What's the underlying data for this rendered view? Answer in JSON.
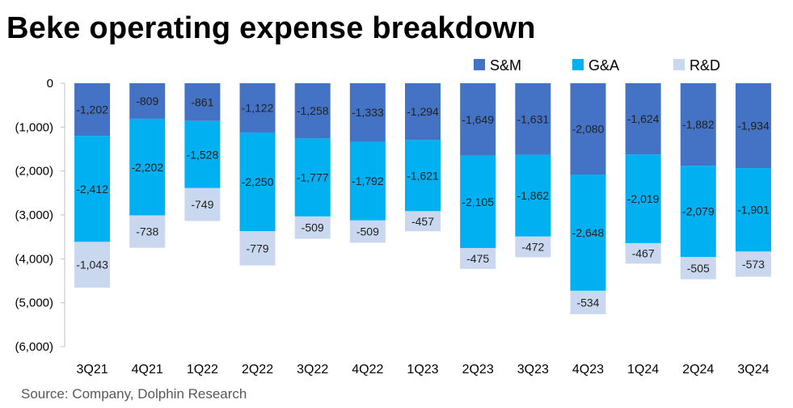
{
  "title": "Beke operating expense breakdown",
  "source": "Source: Company, Dolphin Research",
  "chart_data": {
    "type": "bar",
    "stacked": true,
    "title": "Beke operating expense breakdown",
    "xlabel": "",
    "ylabel": "",
    "ylim": [
      -6000,
      0
    ],
    "yticks": [
      0,
      -1000,
      -2000,
      -3000,
      -4000,
      -5000,
      -6000
    ],
    "ytick_labels": [
      "0",
      "(1,000)",
      "(2,000)",
      "(3,000)",
      "(4,000)",
      "(5,000)",
      "(6,000)"
    ],
    "grid": false,
    "legend_position": "top-right",
    "categories": [
      "3Q21",
      "4Q21",
      "1Q22",
      "2Q22",
      "3Q22",
      "4Q22",
      "1Q23",
      "2Q23",
      "3Q23",
      "4Q23",
      "1Q24",
      "2Q24",
      "3Q24"
    ],
    "series": [
      {
        "name": "S&M",
        "color": "#4472c4",
        "values": [
          -1202,
          -809,
          -861,
          -1122,
          -1258,
          -1333,
          -1294,
          -1649,
          -1631,
          -2080,
          -1624,
          -1882,
          -1934
        ],
        "labels": [
          "-1,202",
          "-809",
          "-861",
          "-1,122",
          "-1,258",
          "-1,333",
          "-1,294",
          "-1,649",
          "-1,631",
          "-2,080",
          "-1,624",
          "-1,882",
          "-1,934"
        ]
      },
      {
        "name": "G&A",
        "color": "#00b0f0",
        "values": [
          -2412,
          -2202,
          -1528,
          -2250,
          -1777,
          -1792,
          -1621,
          -2105,
          -1862,
          -2648,
          -2019,
          -2079,
          -1901
        ],
        "labels": [
          "-2,412",
          "-2,202",
          "-1,528",
          "-2,250",
          "-1,777",
          "-1,792",
          "-1,621",
          "-2,105",
          "-1,862",
          "-2,648",
          "-2,019",
          "-2,079",
          "-1,901"
        ]
      },
      {
        "name": "R&D",
        "color": "#c9d8ef",
        "values": [
          -1043,
          -738,
          -749,
          -779,
          -509,
          -509,
          -457,
          -475,
          -472,
          -534,
          -467,
          -505,
          -573
        ],
        "labels": [
          "-1,043",
          "-738",
          "-749",
          "-779",
          "-509",
          "-509",
          "-457",
          "-475",
          "-472",
          "-534",
          "-467",
          "-505",
          "-573"
        ]
      }
    ]
  }
}
